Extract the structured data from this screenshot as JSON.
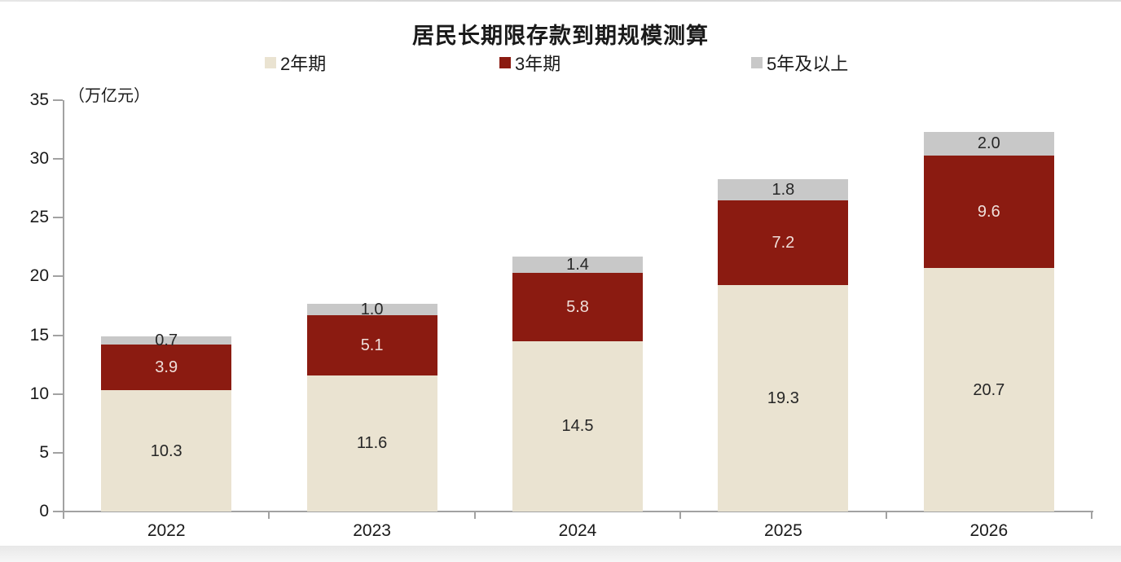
{
  "chart_data": {
    "type": "bar",
    "stacked": true,
    "title": "居民长期限存款到期规模测算",
    "ylabel": "（万亿元）",
    "categories": [
      "2022",
      "2023",
      "2024",
      "2025",
      "2026"
    ],
    "series": [
      {
        "name": "2年期",
        "color": "#EAE3D1",
        "label_color": "#262626",
        "values": [
          10.3,
          11.6,
          14.5,
          19.3,
          20.7
        ]
      },
      {
        "name": "3年期",
        "color": "#8B1B11",
        "label_color": "#EFDFDA",
        "values": [
          3.9,
          5.1,
          5.8,
          7.2,
          9.6
        ]
      },
      {
        "name": "5年及以上",
        "color": "#C8C8C8",
        "label_color": "#262626",
        "values": [
          0.7,
          1.0,
          1.4,
          1.8,
          2.0
        ]
      }
    ],
    "ylim": [
      0,
      35
    ],
    "ytick_step": 5,
    "legend_position": "top",
    "grid": false,
    "axis_color": "#a2a2a2"
  }
}
